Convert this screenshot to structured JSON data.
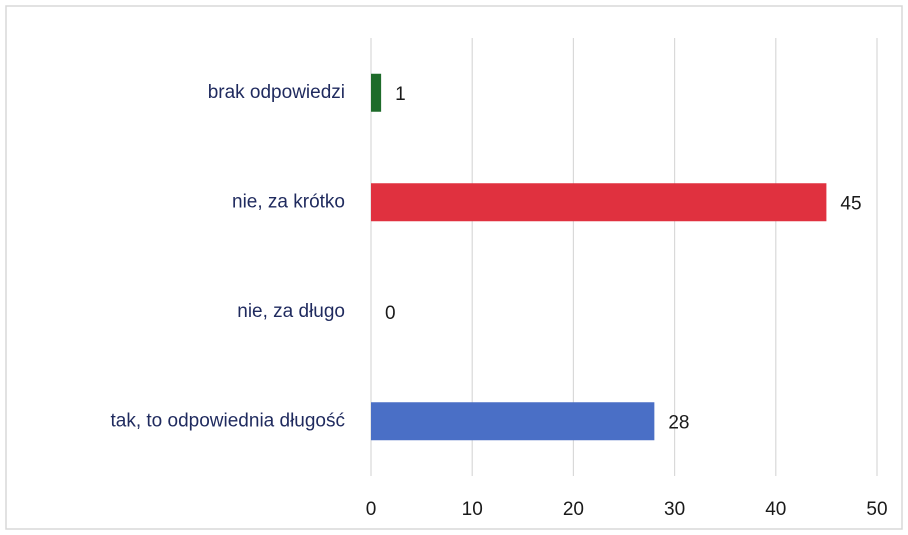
{
  "chart_data": {
    "type": "hbar",
    "categories": [
      "brak odpowiedzi",
      "nie, za krótko",
      "nie, za długo",
      "tak, to odpowiednia długość"
    ],
    "values": [
      1,
      45,
      0,
      28
    ],
    "colors": [
      "#1e6b2a",
      "#e0313f",
      "#4a6fc6",
      "#4a6fc6"
    ],
    "xlim": [
      0,
      50
    ],
    "xticks": [
      0,
      10,
      20,
      30,
      40,
      50
    ],
    "grid": true
  }
}
